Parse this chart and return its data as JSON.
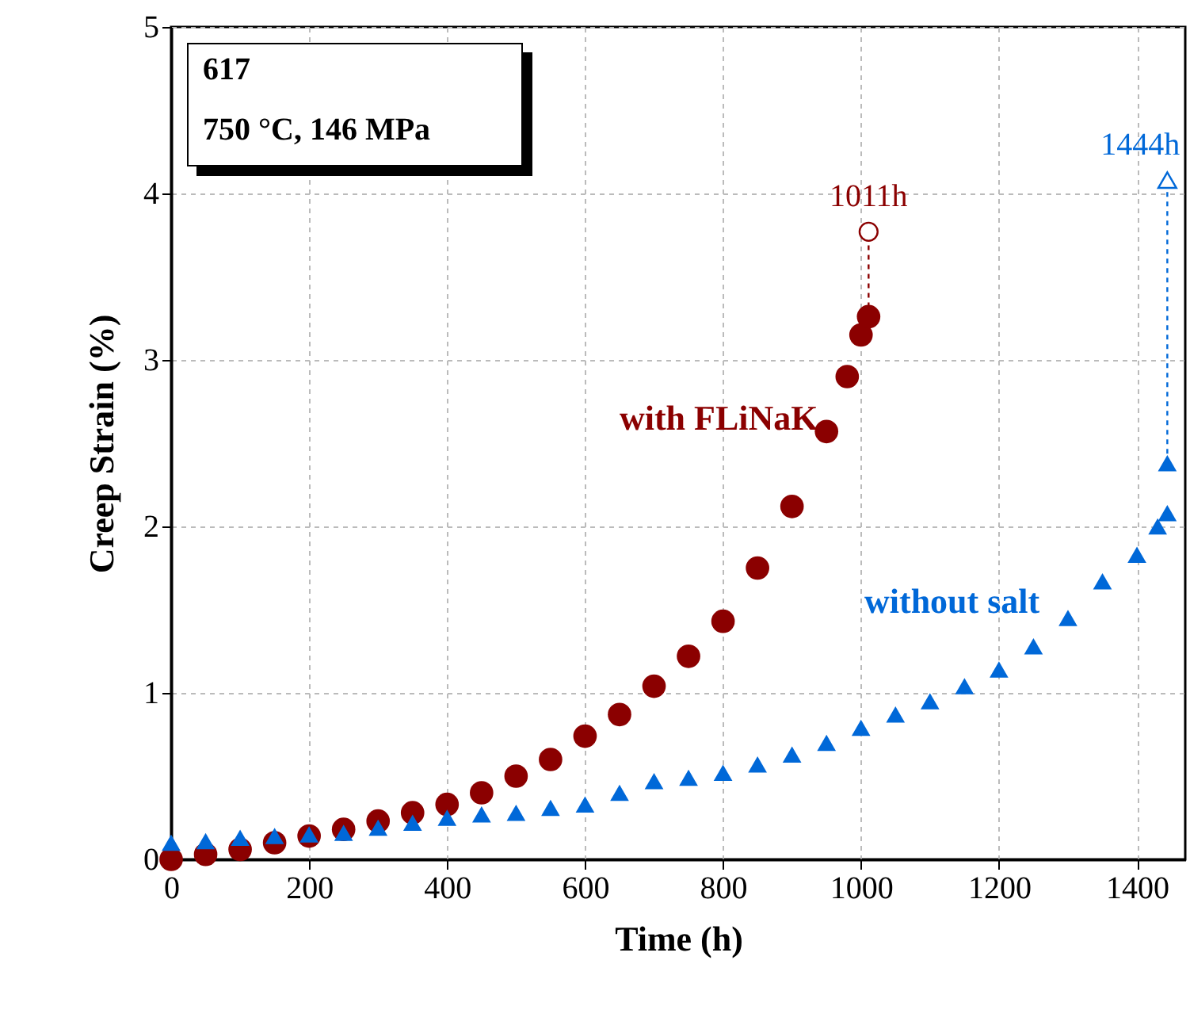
{
  "chart_data": {
    "type": "scatter",
    "title": "617",
    "subtitle": "750 °C, 146 MPa",
    "xlabel": "Time (h)",
    "ylabel": "Creep Strain (%)",
    "xlim": [
      0,
      1470
    ],
    "ylim": [
      0,
      5
    ],
    "xticks": [
      0,
      200,
      400,
      600,
      800,
      1000,
      1200,
      1400
    ],
    "yticks": [
      0,
      1,
      2,
      3,
      4,
      5
    ],
    "grid": true,
    "series": [
      {
        "name": "with FLiNaK",
        "marker": "circle",
        "color": "#8b0000",
        "x": [
          0,
          50,
          100,
          150,
          200,
          250,
          300,
          350,
          400,
          450,
          500,
          550,
          600,
          650,
          700,
          750,
          800,
          850,
          900,
          950,
          980,
          1000,
          1011
        ],
        "values": [
          0.0,
          0.03,
          0.06,
          0.1,
          0.14,
          0.18,
          0.23,
          0.28,
          0.33,
          0.4,
          0.5,
          0.6,
          0.74,
          0.87,
          1.04,
          1.22,
          1.43,
          1.75,
          2.12,
          2.57,
          2.9,
          3.15,
          3.26
        ]
      },
      {
        "name": "without salt",
        "marker": "triangle",
        "color": "#0068d8",
        "x": [
          0,
          50,
          100,
          150,
          200,
          250,
          300,
          350,
          400,
          450,
          500,
          550,
          600,
          650,
          700,
          750,
          800,
          850,
          900,
          950,
          1000,
          1050,
          1100,
          1150,
          1200,
          1250,
          1300,
          1350,
          1400,
          1430,
          1444,
          1444
        ],
        "values": [
          0.1,
          0.11,
          0.13,
          0.14,
          0.15,
          0.16,
          0.19,
          0.22,
          0.25,
          0.27,
          0.28,
          0.31,
          0.33,
          0.4,
          0.47,
          0.49,
          0.52,
          0.57,
          0.63,
          0.7,
          0.79,
          0.87,
          0.95,
          1.04,
          1.14,
          1.28,
          1.45,
          1.67,
          1.83,
          2.0,
          2.08,
          2.38
        ]
      },
      {
        "type": "line",
        "line_style": "dashed",
        "marker": "circle",
        "color": "#8b0000",
        "x": [
          1011,
          1011
        ],
        "values": [
          3.26,
          3.77
        ]
      },
      {
        "type": "line",
        "line_style": "dashed",
        "marker": "triangle",
        "color": "#0068d8",
        "x": [
          1444,
          1444
        ],
        "values": [
          2.38,
          4.08
        ]
      }
    ],
    "annotations": [
      {
        "text": "1011h",
        "x": 1011,
        "y": 3.77
      },
      {
        "text": "1444h",
        "x": 1444,
        "y": 4.08
      }
    ]
  }
}
